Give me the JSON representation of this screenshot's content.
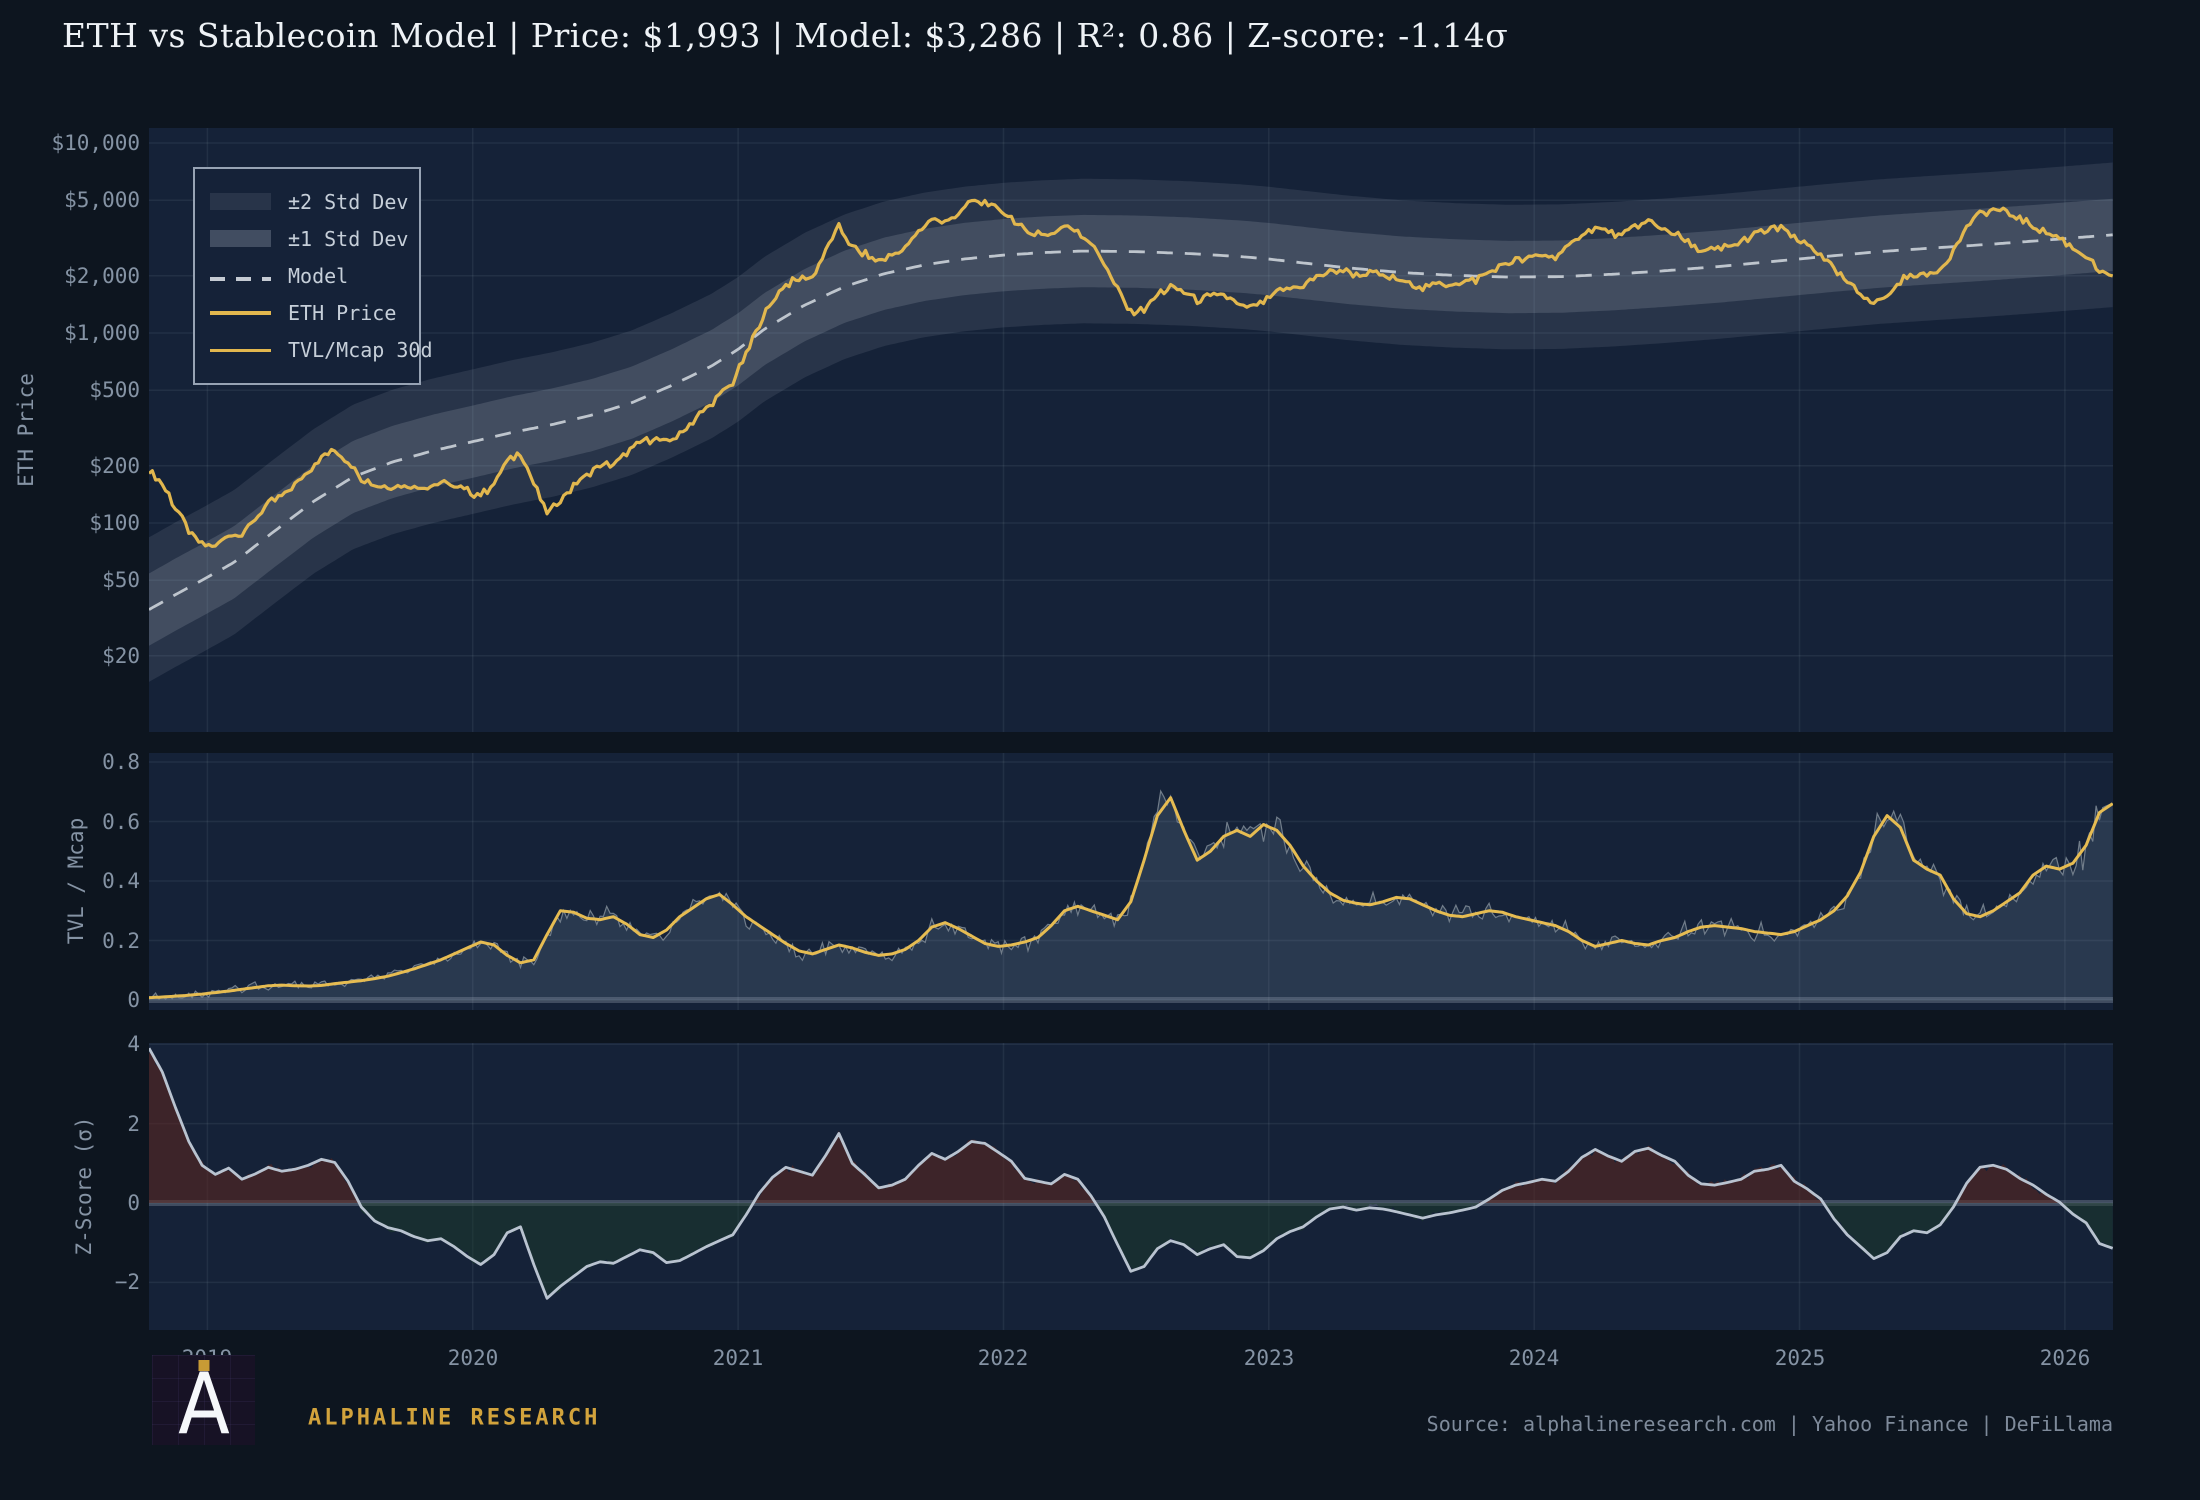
{
  "title": "ETH vs Stablecoin Model | Price: $1,993 | Model: $3,286 | R²: 0.86 | Z-score: -1.14σ",
  "colors": {
    "page_bg": "#0d151f",
    "plot_bg": "#152238",
    "grid": "rgba(160,172,188,0.10)",
    "zero_line": "rgba(165,175,188,0.30)",
    "band_fill": "rgba(168,178,192,0.13)",
    "band_fill_inner": "rgba(168,178,192,0.20)",
    "model_line": "#c5cbd3",
    "eth_gold": "#e2b74e",
    "tvl_gold": "#e6bc52",
    "tvl_raw_line": "#717d8a",
    "tvl_fill": "rgba(125,148,175,0.20)",
    "z_line": "#b9c3d0",
    "z_fill_pos": "rgba(95,38,30,0.55)",
    "z_fill_neg": "rgba(28,62,42,0.45)",
    "tick_text": "#8593a4",
    "brand_gold": "#d2a33c",
    "source_gray": "#7e8a9a"
  },
  "legend": {
    "items": [
      {
        "label": "±2 Std Dev",
        "swatch": "band2"
      },
      {
        "label": "±1 Std Dev",
        "swatch": "band1"
      },
      {
        "label": "Model",
        "swatch": "dashed"
      },
      {
        "label": "ETH Price",
        "swatch": "gold-line"
      },
      {
        "label": "TVL/Mcap 30d",
        "swatch": "gold-line-thin"
      }
    ]
  },
  "footer": {
    "brand": "ALPHALINE RESEARCH",
    "source": "Source: alphalineresearch.com  |  Yahoo Finance  |  DeFiLlama",
    "logo_letter": "A"
  },
  "chart_data": [
    {
      "type": "line",
      "panel": "price",
      "title": "",
      "ylabel": "ETH Price",
      "yscale": "log",
      "ylim": [
        8,
        12000
      ],
      "yticks": [
        {
          "v": 10000,
          "label": "$10,000"
        },
        {
          "v": 5000,
          "label": "$5,000"
        },
        {
          "v": 2000,
          "label": "$2,000"
        },
        {
          "v": 1000,
          "label": "$1,000"
        },
        {
          "v": 500,
          "label": "$500"
        },
        {
          "v": 200,
          "label": "$200"
        },
        {
          "v": 100,
          "label": "$100"
        },
        {
          "v": 50,
          "label": "$50"
        },
        {
          "v": 20,
          "label": "$20"
        }
      ],
      "series_note": "ETH Price = model * exp(sigma_ln * z); bands = model * exp(±k*sigma_ln)",
      "legend_position": "upper-left"
    },
    {
      "type": "area",
      "panel": "tvl",
      "ylabel": "TVL / Mcap",
      "ylim": [
        -0.034,
        0.823
      ],
      "yticks": [
        {
          "v": 0,
          "label": "0"
        },
        {
          "v": 0.2,
          "label": "0.2"
        },
        {
          "v": 0.4,
          "label": "0.4"
        },
        {
          "v": 0.6,
          "label": "0.6"
        },
        {
          "v": 0.8,
          "label": "0.8"
        }
      ]
    },
    {
      "type": "area",
      "panel": "z",
      "ylabel": "Z-Score (σ)",
      "ylim": [
        -3.2,
        4.03
      ],
      "yticks": [
        {
          "v": -2,
          "label": "−2"
        },
        {
          "v": 0,
          "label": "0"
        },
        {
          "v": 2,
          "label": "2"
        },
        {
          "v": 4,
          "label": "4"
        }
      ]
    }
  ],
  "x_axis": {
    "start": 2018.78,
    "step": 0.05,
    "n": 149,
    "ticks": [
      {
        "v": 2019,
        "label": "2019"
      },
      {
        "v": 2020,
        "label": "2020"
      },
      {
        "v": 2021,
        "label": "2021"
      },
      {
        "v": 2022,
        "label": "2022"
      },
      {
        "v": 2023,
        "label": "2023"
      },
      {
        "v": 2024,
        "label": "2024"
      },
      {
        "v": 2025,
        "label": "2025"
      },
      {
        "v": 2026,
        "label": "2026"
      }
    ]
  },
  "series": {
    "sigma_ln": 0.438,
    "latest": {
      "price": 1993,
      "model": 3286,
      "r2": 0.86,
      "zscore": -1.14
    },
    "model_anchors": [
      [
        2018.78,
        35
      ],
      [
        2018.88,
        42
      ],
      [
        2018.98,
        50
      ],
      [
        2019.1,
        62
      ],
      [
        2019.25,
        90
      ],
      [
        2019.4,
        130
      ],
      [
        2019.55,
        175
      ],
      [
        2019.7,
        210
      ],
      [
        2019.85,
        240
      ],
      [
        2020.0,
        268
      ],
      [
        2020.15,
        300
      ],
      [
        2020.3,
        330
      ],
      [
        2020.45,
        370
      ],
      [
        2020.6,
        430
      ],
      [
        2020.75,
        530
      ],
      [
        2020.9,
        670
      ],
      [
        2021.0,
        820
      ],
      [
        2021.1,
        1050
      ],
      [
        2021.25,
        1400
      ],
      [
        2021.4,
        1750
      ],
      [
        2021.55,
        2050
      ],
      [
        2021.7,
        2280
      ],
      [
        2021.85,
        2450
      ],
      [
        2022.0,
        2570
      ],
      [
        2022.15,
        2650
      ],
      [
        2022.3,
        2700
      ],
      [
        2022.5,
        2680
      ],
      [
        2022.7,
        2620
      ],
      [
        2022.9,
        2520
      ],
      [
        2023.0,
        2450
      ],
      [
        2023.15,
        2320
      ],
      [
        2023.3,
        2200
      ],
      [
        2023.5,
        2080
      ],
      [
        2023.7,
        2010
      ],
      [
        2023.9,
        1970
      ],
      [
        2024.1,
        1980
      ],
      [
        2024.3,
        2040
      ],
      [
        2024.5,
        2130
      ],
      [
        2024.7,
        2240
      ],
      [
        2024.9,
        2380
      ],
      [
        2025.1,
        2530
      ],
      [
        2025.3,
        2680
      ],
      [
        2025.5,
        2800
      ],
      [
        2025.7,
        2920
      ],
      [
        2025.9,
        3060
      ],
      [
        2026.05,
        3180
      ],
      [
        2026.18,
        3286
      ]
    ],
    "z30": [
      3.9,
      3.3,
      2.4,
      1.55,
      0.95,
      0.72,
      0.88,
      0.6,
      0.73,
      0.9,
      0.8,
      0.85,
      0.95,
      1.1,
      1.02,
      0.55,
      -0.1,
      -0.45,
      -0.62,
      -0.7,
      -0.85,
      -0.95,
      -0.9,
      -1.1,
      -1.35,
      -1.55,
      -1.3,
      -0.75,
      -0.6,
      -1.55,
      -2.4,
      -2.1,
      -1.85,
      -1.6,
      -1.48,
      -1.52,
      -1.35,
      -1.18,
      -1.25,
      -1.5,
      -1.45,
      -1.28,
      -1.1,
      -0.95,
      -0.8,
      -0.3,
      0.25,
      0.65,
      0.9,
      0.8,
      0.7,
      1.2,
      1.75,
      1.0,
      0.7,
      0.38,
      0.45,
      0.6,
      0.95,
      1.25,
      1.1,
      1.3,
      1.55,
      1.5,
      1.28,
      1.05,
      0.62,
      0.55,
      0.48,
      0.72,
      0.6,
      0.18,
      -0.35,
      -1.05,
      -1.72,
      -1.6,
      -1.15,
      -0.95,
      -1.05,
      -1.3,
      -1.15,
      -1.05,
      -1.35,
      -1.38,
      -1.2,
      -0.9,
      -0.72,
      -0.6,
      -0.35,
      -0.15,
      -0.1,
      -0.18,
      -0.12,
      -0.15,
      -0.22,
      -0.3,
      -0.38,
      -0.3,
      -0.25,
      -0.18,
      -0.1,
      0.1,
      0.32,
      0.45,
      0.52,
      0.6,
      0.55,
      0.8,
      1.15,
      1.35,
      1.18,
      1.05,
      1.3,
      1.38,
      1.2,
      1.05,
      0.7,
      0.48,
      0.45,
      0.52,
      0.6,
      0.8,
      0.85,
      0.95,
      0.55,
      0.35,
      0.1,
      -0.4,
      -0.8,
      -1.1,
      -1.4,
      -1.25,
      -0.85,
      -0.7,
      -0.75,
      -0.55,
      -0.1,
      0.5,
      0.9,
      0.95,
      0.85,
      0.62,
      0.45,
      0.22,
      0.02,
      -0.28,
      -0.5,
      -1.02,
      -1.14
    ],
    "tvl30": [
      0.008,
      0.01,
      0.013,
      0.016,
      0.02,
      0.025,
      0.03,
      0.036,
      0.042,
      0.048,
      0.05,
      0.048,
      0.047,
      0.049,
      0.055,
      0.06,
      0.065,
      0.072,
      0.08,
      0.092,
      0.105,
      0.12,
      0.135,
      0.155,
      0.175,
      0.195,
      0.185,
      0.15,
      0.125,
      0.135,
      0.22,
      0.3,
      0.295,
      0.275,
      0.27,
      0.28,
      0.255,
      0.22,
      0.21,
      0.235,
      0.28,
      0.31,
      0.34,
      0.355,
      0.32,
      0.28,
      0.25,
      0.22,
      0.19,
      0.165,
      0.155,
      0.17,
      0.185,
      0.175,
      0.16,
      0.15,
      0.155,
      0.17,
      0.2,
      0.245,
      0.26,
      0.24,
      0.215,
      0.19,
      0.18,
      0.185,
      0.195,
      0.21,
      0.25,
      0.3,
      0.315,
      0.3,
      0.285,
      0.27,
      0.33,
      0.47,
      0.62,
      0.68,
      0.57,
      0.47,
      0.5,
      0.55,
      0.57,
      0.55,
      0.59,
      0.57,
      0.52,
      0.45,
      0.4,
      0.36,
      0.335,
      0.325,
      0.32,
      0.33,
      0.345,
      0.34,
      0.32,
      0.3,
      0.285,
      0.28,
      0.29,
      0.3,
      0.295,
      0.28,
      0.27,
      0.26,
      0.25,
      0.23,
      0.2,
      0.18,
      0.19,
      0.2,
      0.19,
      0.185,
      0.2,
      0.21,
      0.23,
      0.245,
      0.25,
      0.245,
      0.24,
      0.23,
      0.225,
      0.22,
      0.23,
      0.25,
      0.27,
      0.3,
      0.35,
      0.43,
      0.55,
      0.62,
      0.58,
      0.47,
      0.44,
      0.42,
      0.34,
      0.29,
      0.28,
      0.3,
      0.33,
      0.36,
      0.42,
      0.45,
      0.44,
      0.46,
      0.52,
      0.63,
      0.66
    ],
    "jitter": {
      "z_amp1": 0.085,
      "z_amp2": 0.045,
      "tvl_amp": 0.016
    }
  },
  "axis_titles": {
    "price": "ETH Price",
    "tvl": "TVL / Mcap",
    "z": "Z-Score (σ)"
  }
}
